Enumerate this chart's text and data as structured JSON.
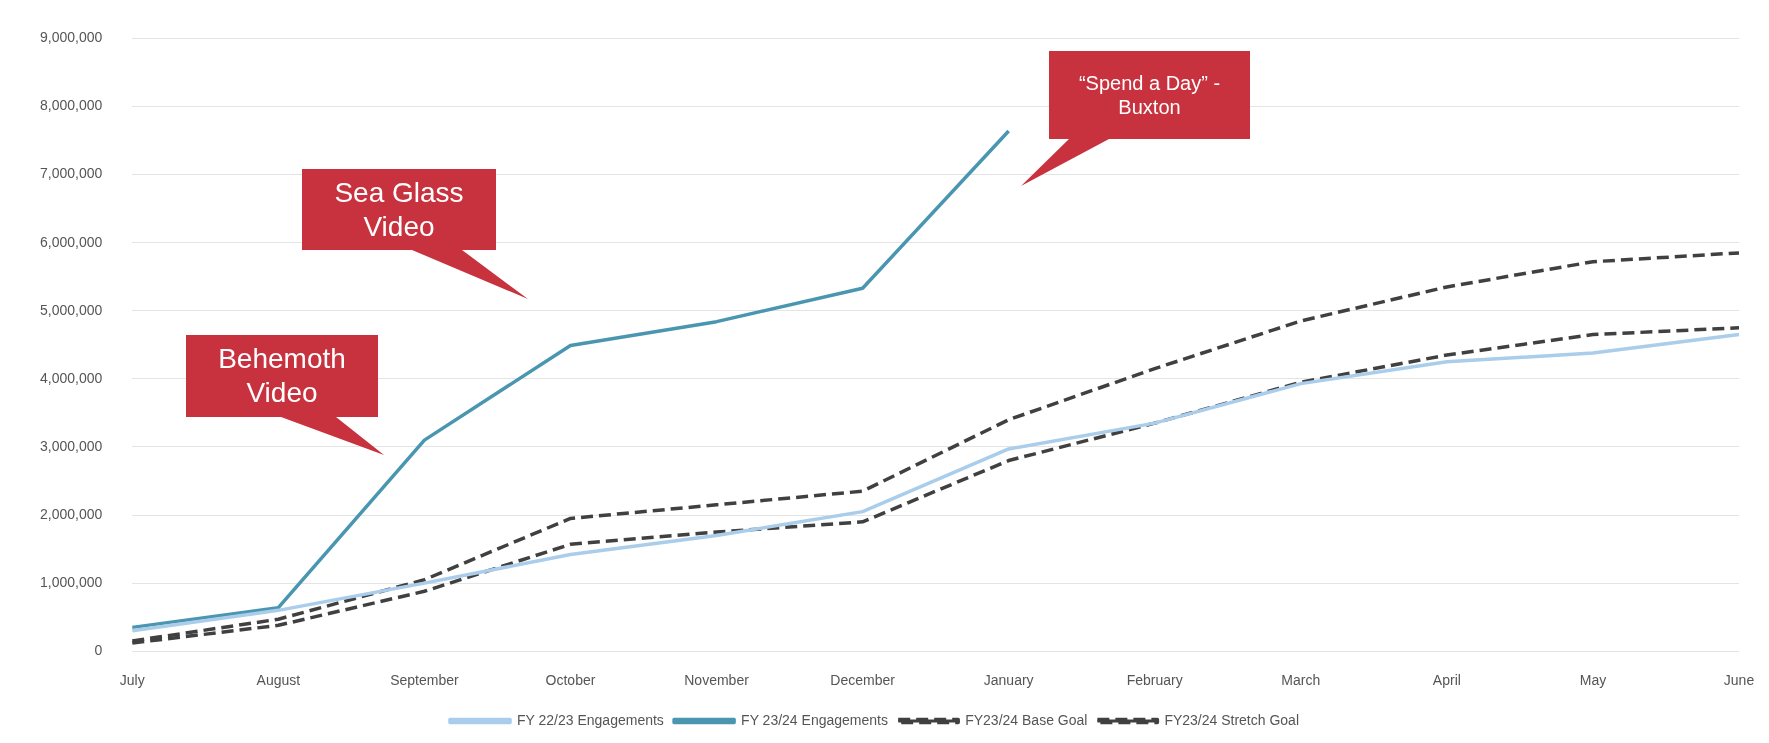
{
  "chart_data": {
    "type": "line",
    "categories": [
      "July",
      "August",
      "September",
      "October",
      "November",
      "December",
      "January",
      "February",
      "March",
      "April",
      "May",
      "June"
    ],
    "series": [
      {
        "name": "FY 22/23 Engagements",
        "color": "#a9cdea",
        "line_style": "solid",
        "values": [
          300000,
          600000,
          1000000,
          1420000,
          1700000,
          2050000,
          2970000,
          3350000,
          3930000,
          4250000,
          4380000,
          4650000
        ]
      },
      {
        "name": "FY 23/24 Engagements",
        "color": "#4a96b0",
        "line_style": "solid",
        "values": [
          350000,
          640000,
          3100000,
          4490000,
          4840000,
          5330000,
          7640000,
          null,
          null,
          null,
          null,
          null
        ]
      },
      {
        "name": "FY23/24 Base Goal",
        "color": "#404040",
        "line_style": "dashed",
        "values": [
          120000,
          380000,
          880000,
          1570000,
          1750000,
          1900000,
          2800000,
          3350000,
          3950000,
          4350000,
          4650000,
          4750000
        ]
      },
      {
        "name": "FY23/24 Stretch Goal",
        "color": "#404040",
        "line_style": "dashed",
        "values": [
          150000,
          470000,
          1050000,
          1950000,
          2150000,
          2350000,
          3400000,
          4150000,
          4850000,
          5350000,
          5720000,
          5850000
        ]
      }
    ],
    "ylim": [
      0,
      9000000
    ],
    "yticks": [
      {
        "value": 0,
        "label": "0"
      },
      {
        "value": 1000000,
        "label": "1,000,000"
      },
      {
        "value": 2000000,
        "label": "2,000,000"
      },
      {
        "value": 3000000,
        "label": "3,000,000"
      },
      {
        "value": 4000000,
        "label": "4,000,000"
      },
      {
        "value": 5000000,
        "label": "5,000,000"
      },
      {
        "value": 6000000,
        "label": "6,000,000"
      },
      {
        "value": 7000000,
        "label": "7,000,000"
      },
      {
        "value": 8000000,
        "label": "8,000,000"
      },
      {
        "value": 9000000,
        "label": "9,000,000"
      }
    ],
    "grid": "y",
    "legend": "bottom",
    "marker": "none",
    "annotations": [
      "Behemoth Video",
      "Sea Glass Video",
      "“Spend a Day” - Buxton"
    ]
  }
}
